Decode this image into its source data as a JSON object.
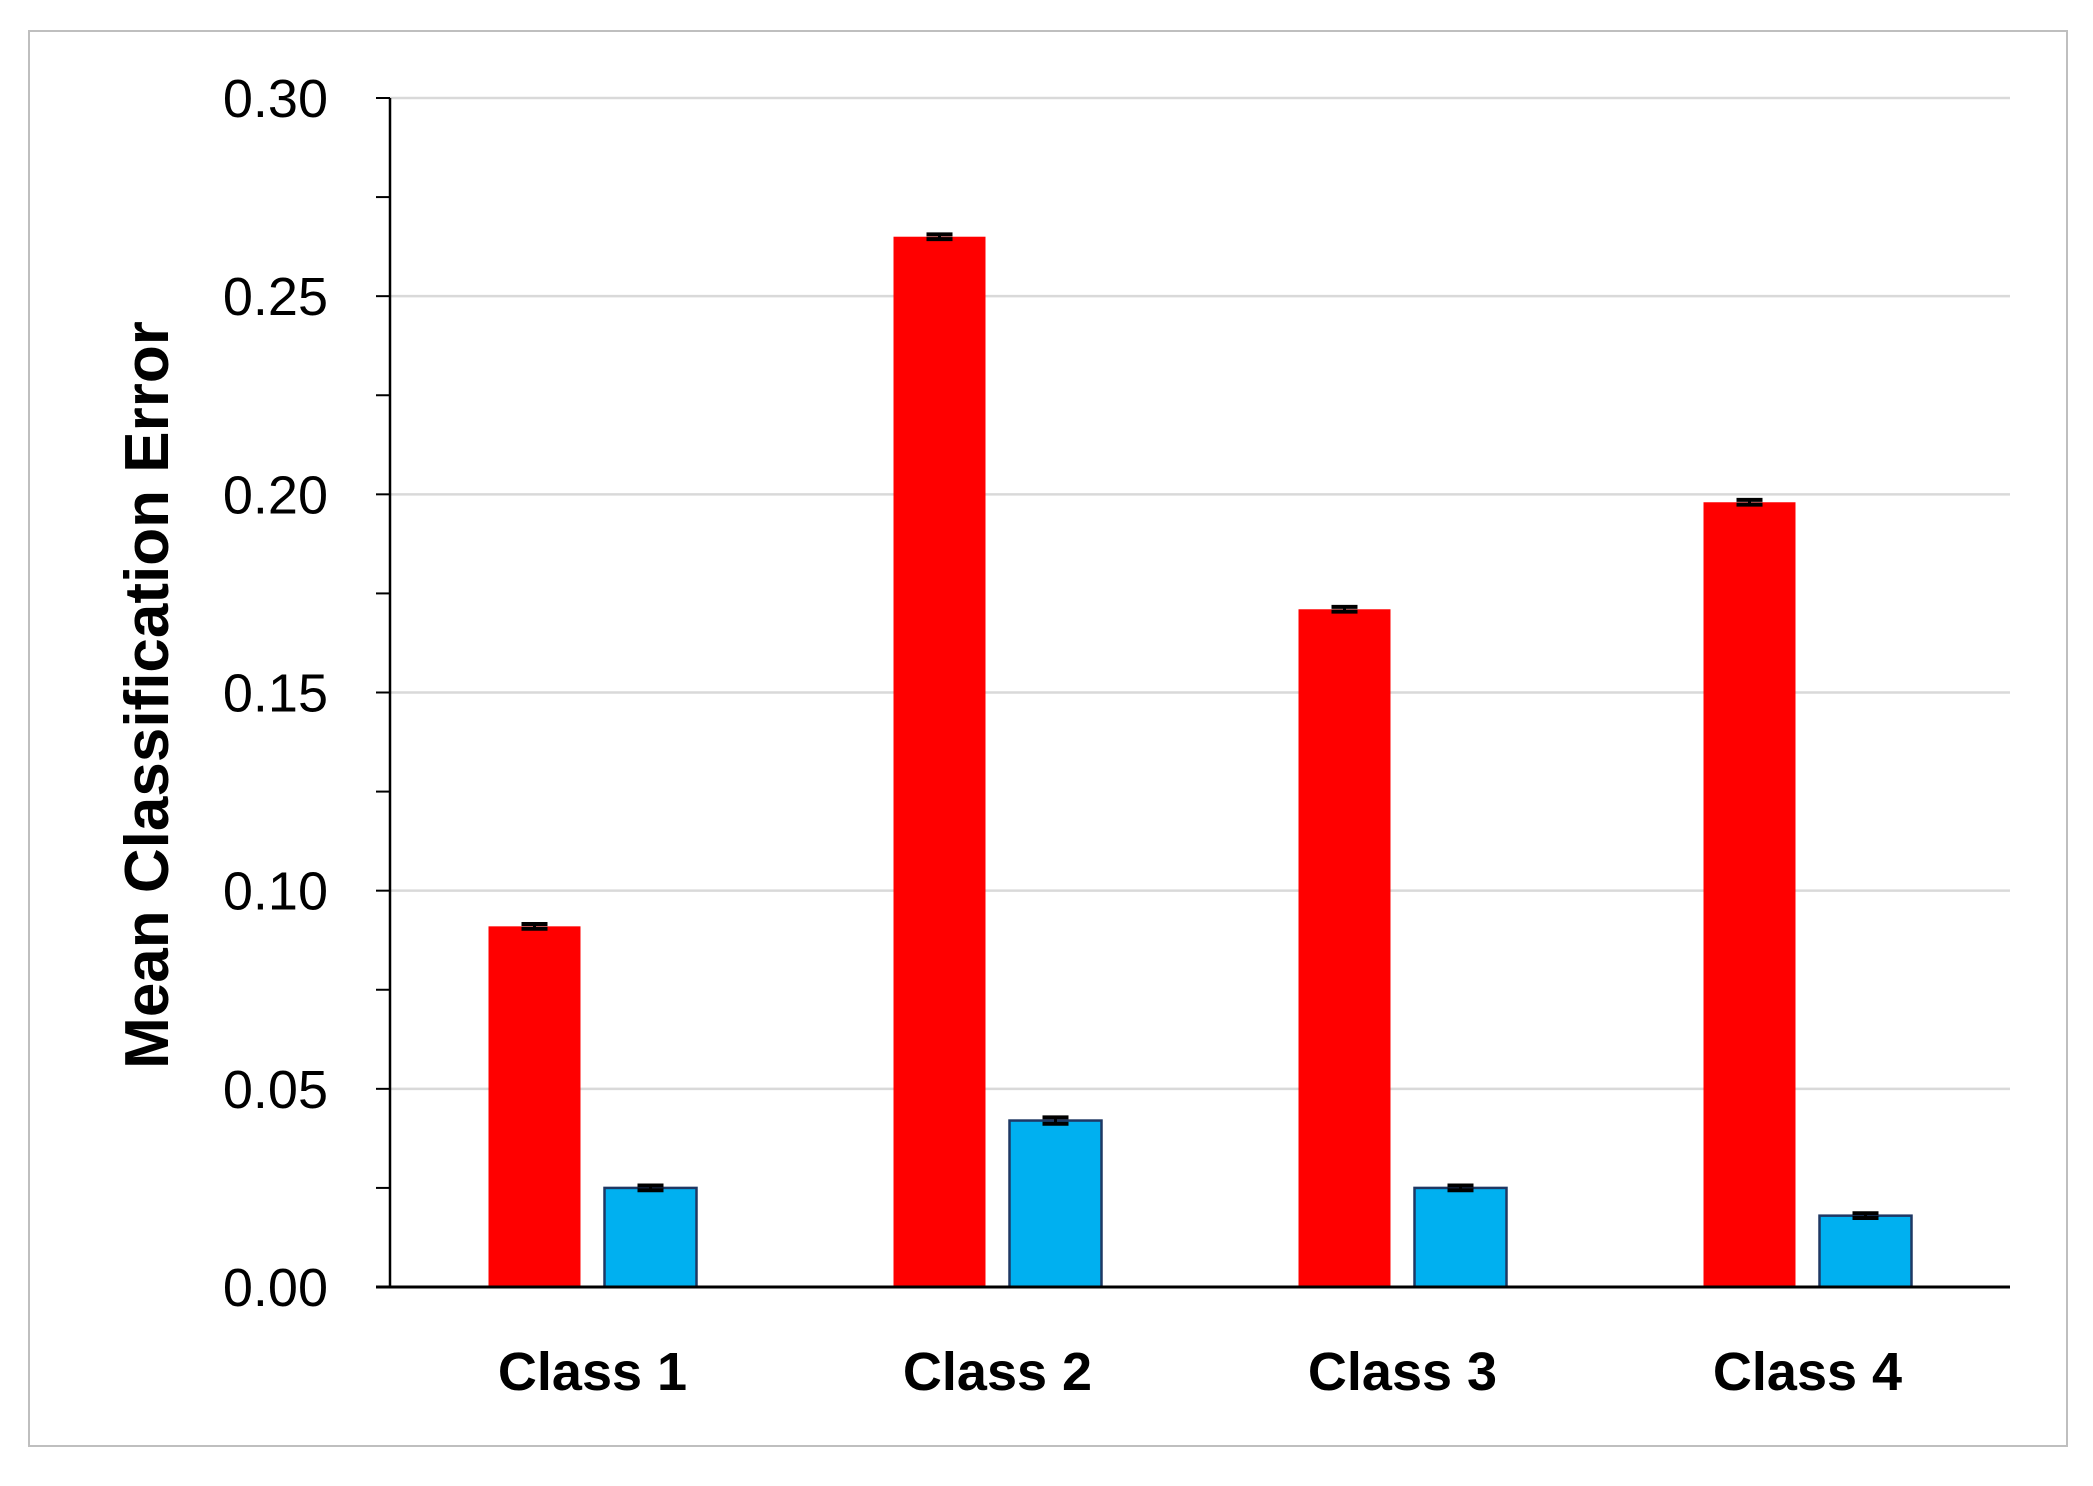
{
  "chart_data": {
    "type": "bar",
    "title": "",
    "xlabel": "",
    "ylabel": "Mean Classification Error",
    "ylim": [
      0,
      0.3
    ],
    "yticks": [
      "0.00",
      "0.05",
      "0.10",
      "0.15",
      "0.20",
      "0.25",
      "0.30"
    ],
    "grid": true,
    "legend": "none",
    "categories": [
      "Class 1",
      "Class 2",
      "Class 3",
      "Class 4"
    ],
    "series": [
      {
        "color": "#ff0000",
        "values": [
          0.091,
          0.265,
          0.171,
          0.198
        ],
        "error": [
          0.0006,
          0.0006,
          0.0006,
          0.0006
        ]
      },
      {
        "color": "#00b0f0",
        "values": [
          0.025,
          0.042,
          0.025,
          0.018
        ],
        "error": [
          0.0006,
          0.0008,
          0.0006,
          0.0006
        ]
      }
    ]
  }
}
